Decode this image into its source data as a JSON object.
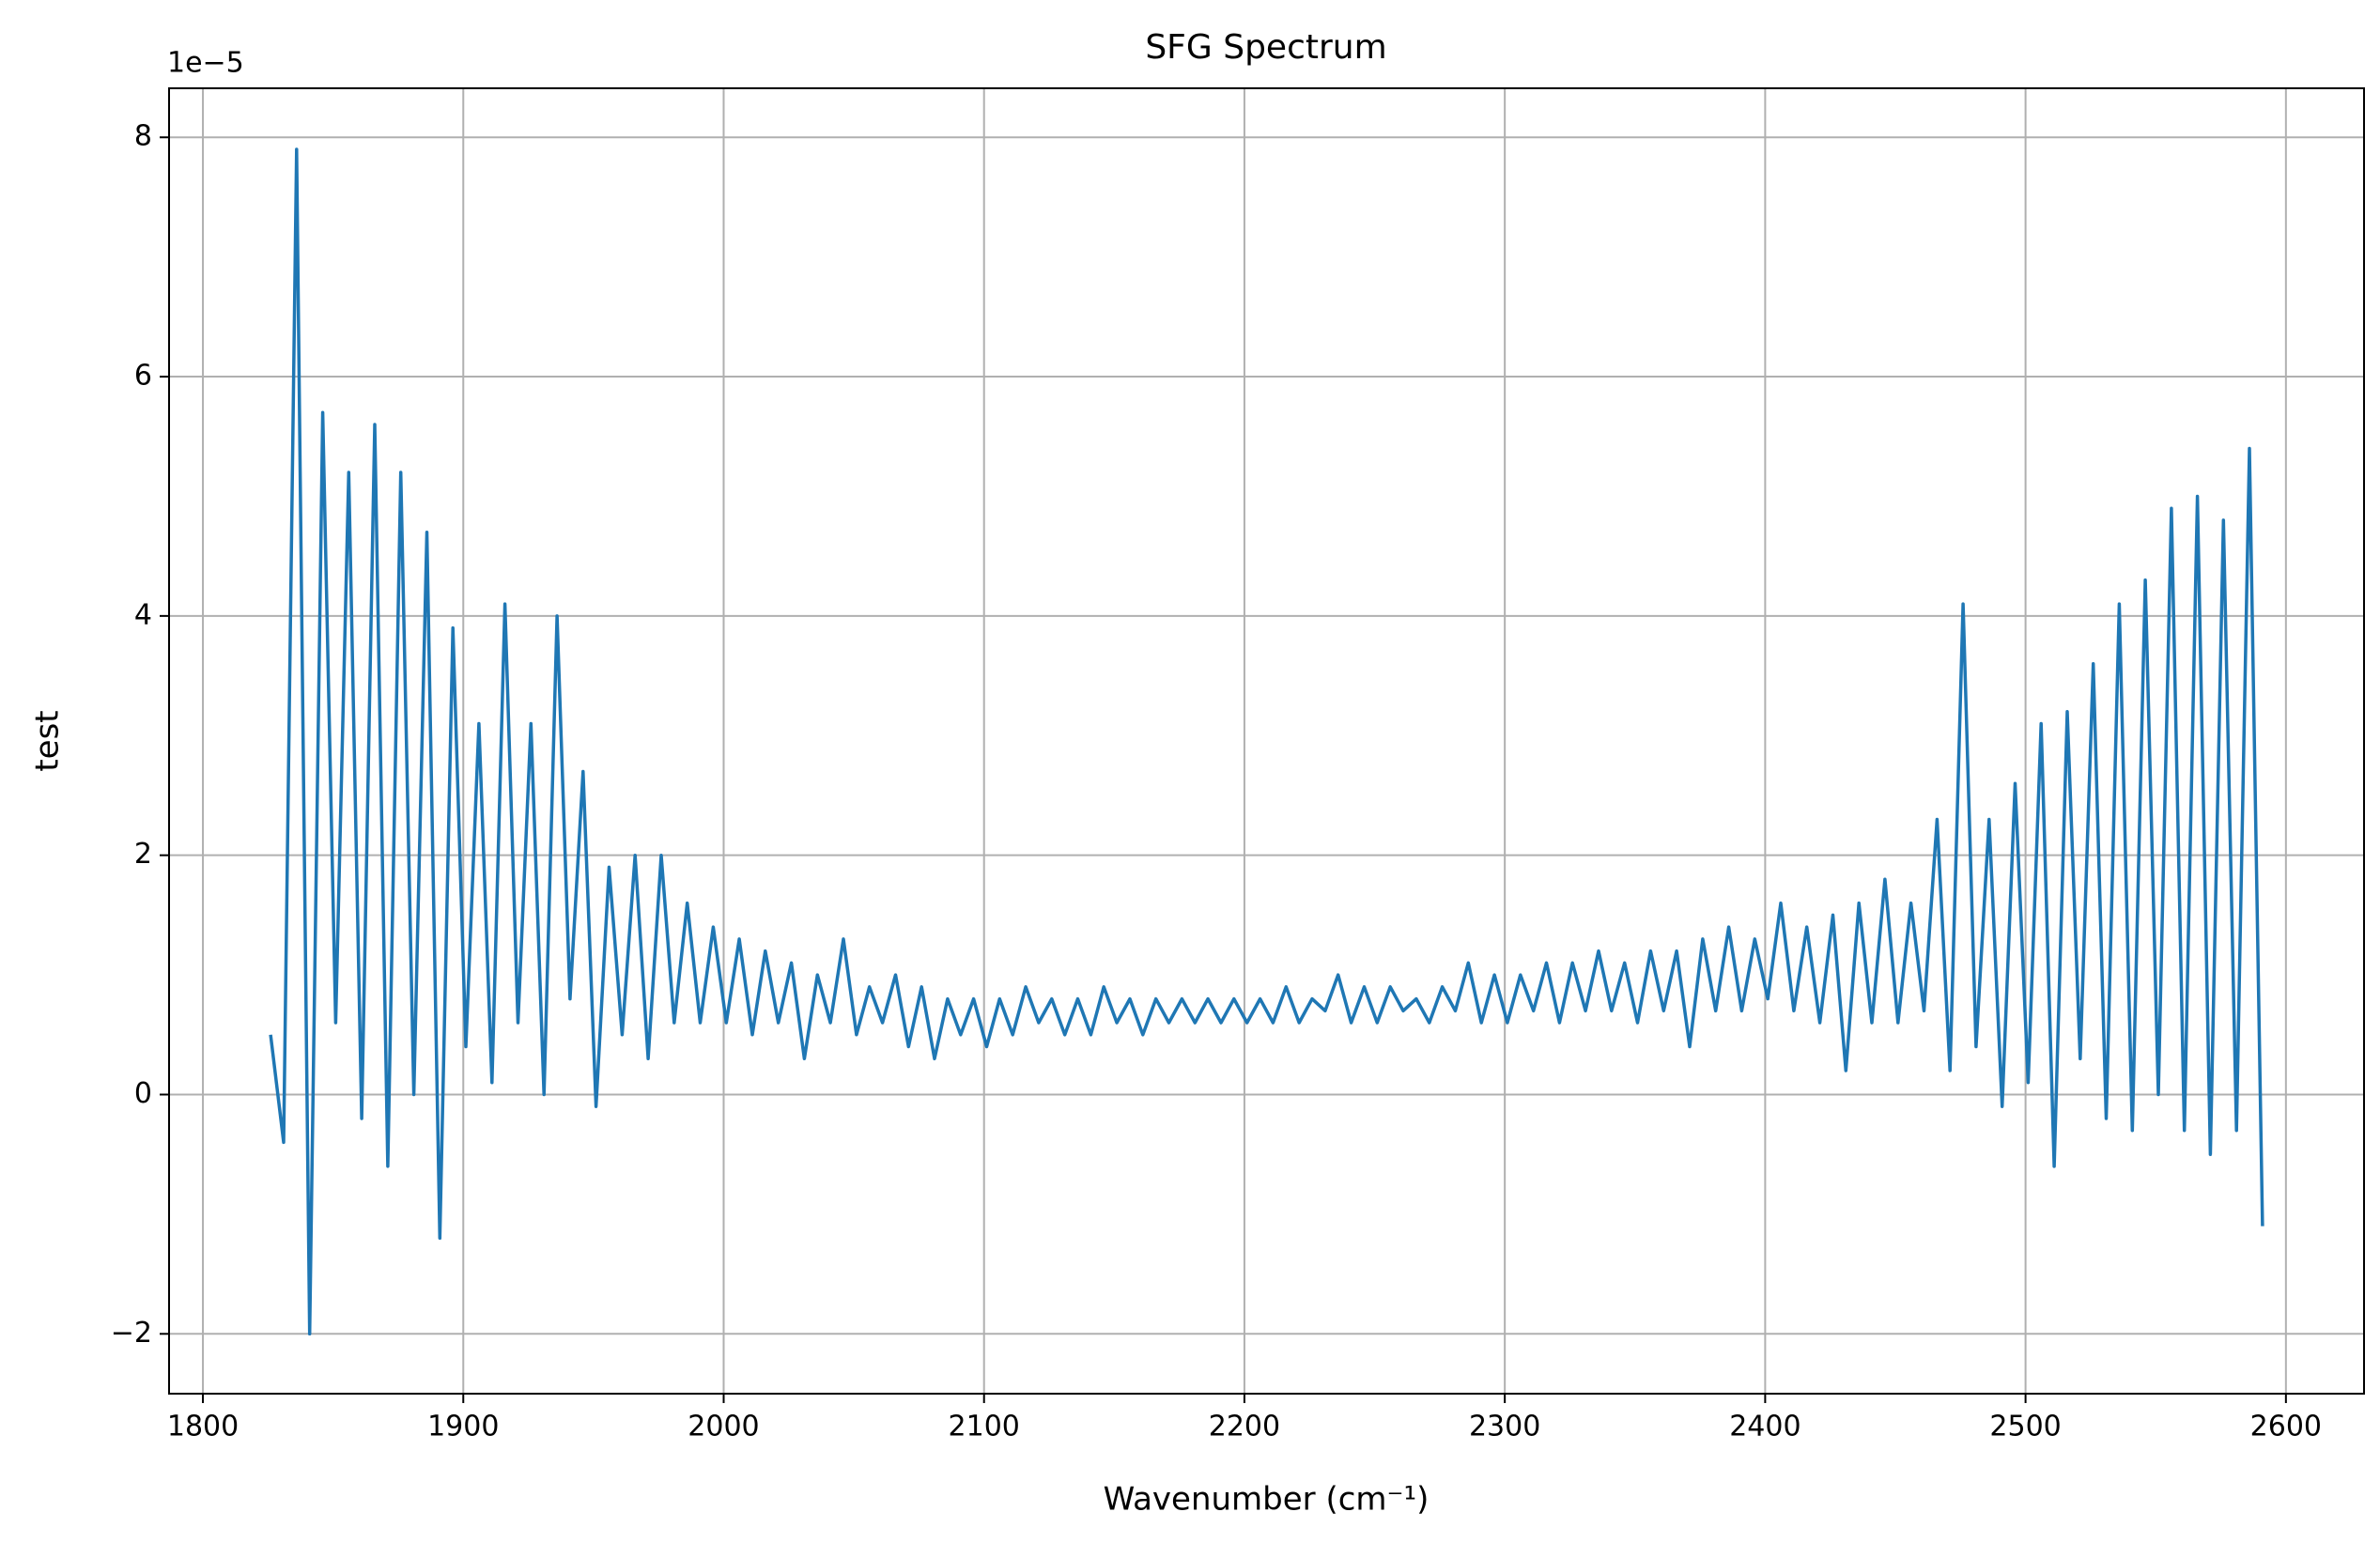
{
  "chart_data": {
    "type": "line",
    "title": "SFG Spectrum",
    "x_label": "Wavenumber (cm⁻¹)",
    "y_label": "test",
    "y_offset_label": "1e−5",
    "x": [
      1826,
      1831,
      1836,
      1841,
      1846,
      1851,
      1856,
      1861,
      1866,
      1871,
      1876,
      1881,
      1886,
      1891,
      1896,
      1901,
      1906,
      1911,
      1916,
      1921,
      1926,
      1931,
      1936,
      1941,
      1946,
      1951,
      1956,
      1961,
      1966,
      1971,
      1976,
      1981,
      1986,
      1991,
      1996,
      2001,
      2006,
      2011,
      2016,
      2021,
      2026,
      2031,
      2036,
      2041,
      2046,
      2051,
      2056,
      2061,
      2066,
      2071,
      2076,
      2081,
      2086,
      2091,
      2096,
      2101,
      2106,
      2111,
      2116,
      2121,
      2126,
      2131,
      2136,
      2141,
      2146,
      2151,
      2156,
      2161,
      2166,
      2171,
      2176,
      2181,
      2186,
      2191,
      2196,
      2201,
      2206,
      2211,
      2216,
      2221,
      2226,
      2231,
      2236,
      2241,
      2246,
      2251,
      2256,
      2261,
      2266,
      2271,
      2276,
      2281,
      2286,
      2291,
      2296,
      2301,
      2306,
      2311,
      2316,
      2321,
      2326,
      2331,
      2336,
      2341,
      2346,
      2351,
      2356,
      2361,
      2366,
      2371,
      2376,
      2381,
      2386,
      2391,
      2396,
      2401,
      2406,
      2411,
      2416,
      2421,
      2426,
      2431,
      2436,
      2441,
      2446,
      2451,
      2456,
      2461,
      2466,
      2471,
      2476,
      2481,
      2486,
      2491,
      2496,
      2501,
      2506,
      2511,
      2516,
      2521,
      2526,
      2531,
      2536,
      2541,
      2546,
      2551,
      2556,
      2561,
      2566,
      2571,
      2576,
      2581,
      2586,
      2591
    ],
    "series": [
      {
        "name": "test",
        "color": "#1f77b4",
        "values": [
          0.5,
          -0.4,
          7.9,
          -2.0,
          5.7,
          0.6,
          5.2,
          -0.2,
          5.6,
          -0.6,
          5.2,
          0.0,
          4.7,
          -1.2,
          3.9,
          0.4,
          3.1,
          0.1,
          4.1,
          0.6,
          3.1,
          0.0,
          4.0,
          0.8,
          2.7,
          -0.1,
          1.9,
          0.5,
          2.0,
          0.3,
          2.0,
          0.6,
          1.6,
          0.6,
          1.4,
          0.6,
          1.3,
          0.5,
          1.2,
          0.6,
          1.1,
          0.3,
          1.0,
          0.6,
          1.3,
          0.5,
          0.9,
          0.6,
          1.0,
          0.4,
          0.9,
          0.3,
          0.8,
          0.5,
          0.8,
          0.4,
          0.8,
          0.5,
          0.9,
          0.6,
          0.8,
          0.5,
          0.8,
          0.5,
          0.9,
          0.6,
          0.8,
          0.5,
          0.8,
          0.6,
          0.8,
          0.6,
          0.8,
          0.6,
          0.8,
          0.6,
          0.8,
          0.6,
          0.9,
          0.6,
          0.8,
          0.7,
          1.0,
          0.6,
          0.9,
          0.6,
          0.9,
          0.7,
          0.8,
          0.6,
          0.9,
          0.7,
          1.1,
          0.6,
          1.0,
          0.6,
          1.0,
          0.7,
          1.1,
          0.6,
          1.1,
          0.7,
          1.2,
          0.7,
          1.1,
          0.6,
          1.2,
          0.7,
          1.2,
          0.4,
          1.3,
          0.7,
          1.4,
          0.7,
          1.3,
          0.8,
          1.6,
          0.7,
          1.4,
          0.6,
          1.5,
          0.2,
          1.6,
          0.6,
          1.8,
          0.6,
          1.6,
          0.7,
          2.3,
          0.2,
          4.1,
          0.4,
          2.3,
          -0.1,
          2.6,
          0.1,
          3.1,
          -0.6,
          3.2,
          0.3,
          3.6,
          -0.2,
          4.1,
          -0.3,
          4.3,
          0.0,
          4.9,
          -0.3,
          5.0,
          -0.5,
          4.8,
          -0.3,
          5.4,
          -1.1
        ]
      }
    ],
    "xlim": [
      1787,
      2630
    ],
    "ylim": [
      -2.5,
      8.41
    ],
    "xticks": [
      1800,
      1900,
      2000,
      2100,
      2200,
      2300,
      2400,
      2500,
      2600
    ],
    "yticks": [
      {
        "value": -2,
        "label": "−2"
      },
      0,
      2,
      4,
      6,
      8
    ],
    "grid": true
  }
}
